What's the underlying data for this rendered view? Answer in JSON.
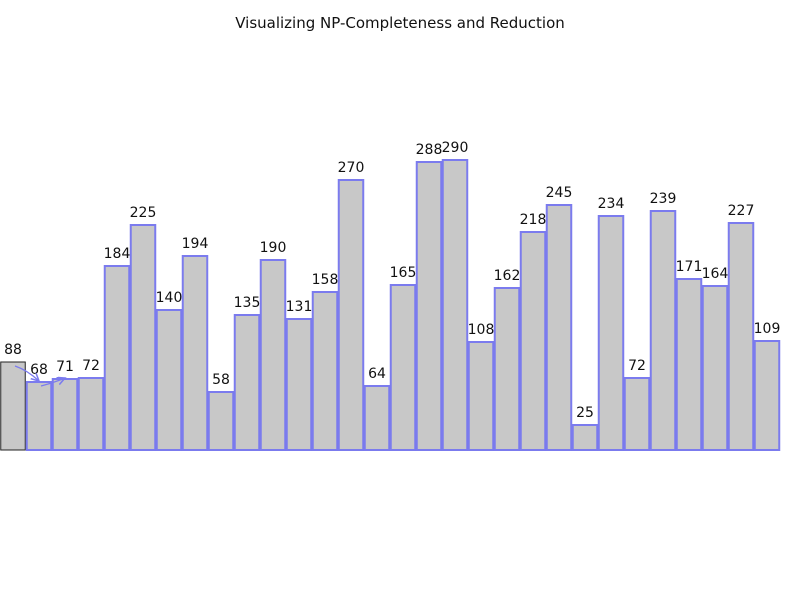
{
  "chart_data": {
    "type": "bar",
    "title": "Visualizing NP-Completeness and Reduction",
    "values": [
      88,
      68,
      71,
      72,
      184,
      225,
      140,
      194,
      58,
      135,
      190,
      131,
      158,
      270,
      64,
      165,
      288,
      290,
      108,
      162,
      218,
      245,
      25,
      234,
      72,
      239,
      171,
      164,
      227,
      109
    ],
    "highlight_index": 0,
    "ylim": [
      0,
      290
    ],
    "grid": false,
    "colors": {
      "bar_fill": "#c8c8c8",
      "bar_stroke": "#7b7bee",
      "highlight_stroke": "#222222",
      "arrow": "#7b7bee"
    }
  }
}
